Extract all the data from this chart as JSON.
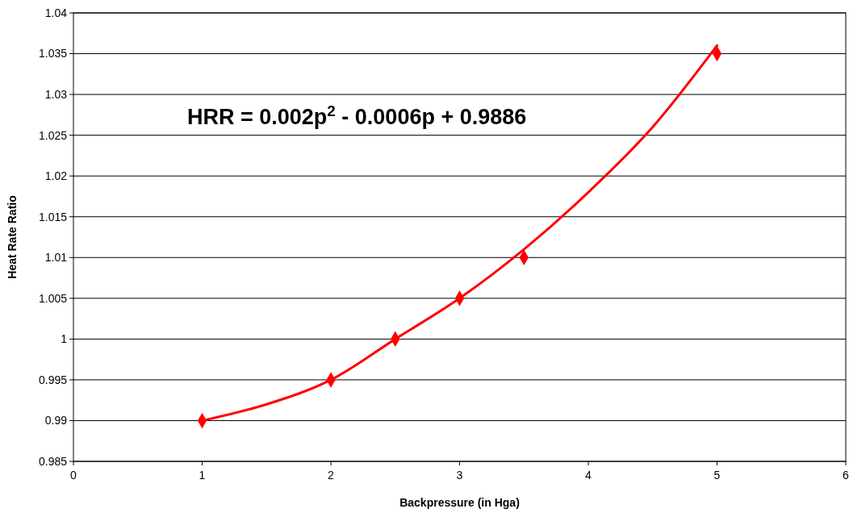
{
  "chart_data": {
    "type": "scatter",
    "xlabel": "Backpressure (in Hga)",
    "ylabel": "Heat Rate Ratio",
    "x": [
      1,
      2,
      2.5,
      3,
      3.5,
      5
    ],
    "series": [
      {
        "color": "#ff0000",
        "values": [
          0.99,
          0.995,
          1.0,
          1.005,
          1.01,
          1.035
        ],
        "marker": "diamond"
      },
      {
        "type": "line",
        "color": "#ff0000",
        "x": [
          1,
          1.5,
          2,
          2.5,
          3,
          3.5,
          4,
          4.5,
          5
        ],
        "values": [
          0.99,
          0.992,
          0.995,
          1.0,
          1.005,
          1.011,
          1.018,
          1.026,
          1.036
        ],
        "marker": "none",
        "line_style": "solid"
      }
    ],
    "xlim": [
      0,
      6
    ],
    "xticks": [
      0,
      1,
      2,
      3,
      4,
      5,
      6
    ],
    "ylim": [
      0.985,
      1.04
    ],
    "yticks": [
      0.985,
      0.99,
      0.995,
      1,
      1.005,
      1.01,
      1.015,
      1.02,
      1.025,
      1.03,
      1.035,
      1.04
    ],
    "grid": "y",
    "annotations": [
      "HRR = 0.002p$^{2}$ - 0.0006p + 0.9886"
    ]
  }
}
